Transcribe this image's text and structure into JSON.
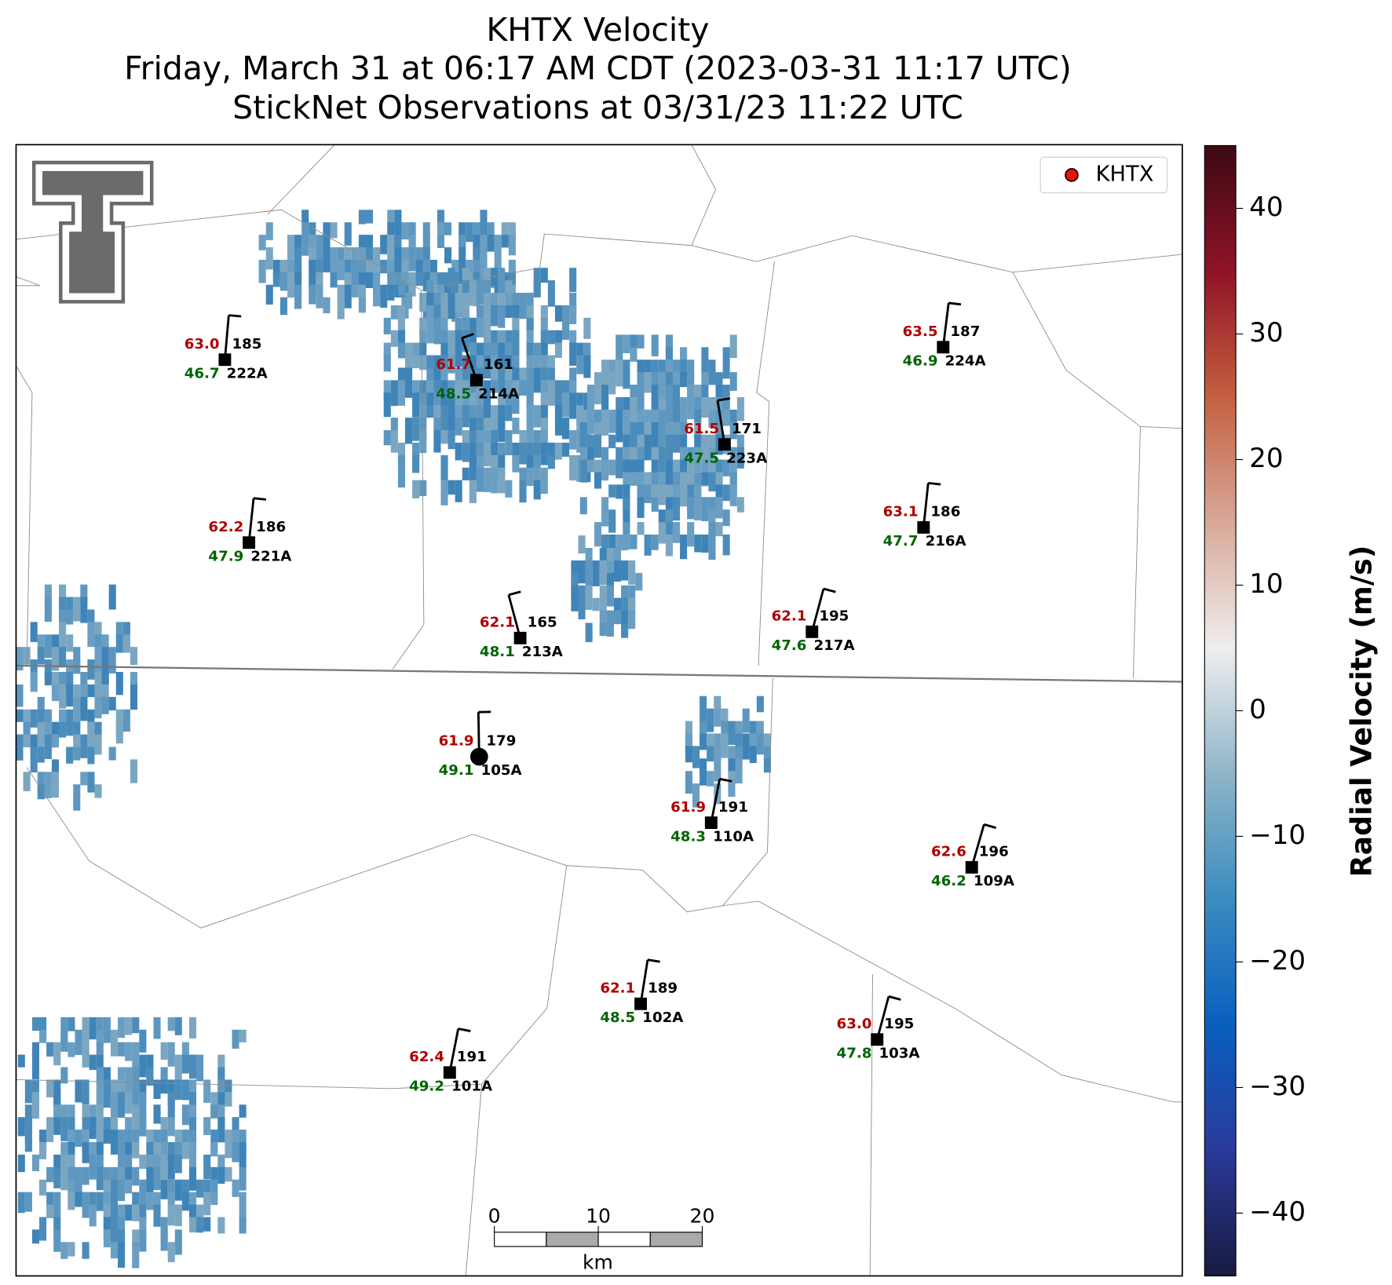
{
  "title": {
    "lines": [
      "KHTX Velocity",
      "Friday, March 31 at 06:17 AM CDT (2023-03-31 11:17 UTC)",
      "StickNet Observations at 03/31/23 11:22 UTC"
    ]
  },
  "legend": {
    "label": "KHTX",
    "color": "#e8120c"
  },
  "stations": [
    {
      "id": "222A",
      "temperature": "63.0",
      "dewpoint": "46.7",
      "wind_direction": 185
    },
    {
      "id": "214A",
      "temperature": "61.7",
      "dewpoint": "48.5",
      "wind_direction": 161
    },
    {
      "id": "224A",
      "temperature": "63.5",
      "dewpoint": "46.9",
      "wind_direction": 187
    },
    {
      "id": "223A",
      "temperature": "61.5",
      "dewpoint": "47.5",
      "wind_direction": 171
    },
    {
      "id": "221A",
      "temperature": "62.2",
      "dewpoint": "47.9",
      "wind_direction": 186
    },
    {
      "id": "216A",
      "temperature": "63.1",
      "dewpoint": "47.7",
      "wind_direction": 186
    },
    {
      "id": "213A",
      "temperature": "62.1",
      "dewpoint": "48.1",
      "wind_direction": 165
    },
    {
      "id": "217A",
      "temperature": "62.1",
      "dewpoint": "47.6",
      "wind_direction": 195
    },
    {
      "id": "105A",
      "temperature": "61.9",
      "dewpoint": "49.1",
      "wind_direction": 179
    },
    {
      "id": "110A",
      "temperature": "61.9",
      "dewpoint": "48.3",
      "wind_direction": 191
    },
    {
      "id": "109A",
      "temperature": "62.6",
      "dewpoint": "46.2",
      "wind_direction": 196
    },
    {
      "id": "102A",
      "temperature": "62.1",
      "dewpoint": "48.5",
      "wind_direction": 189
    },
    {
      "id": "103A",
      "temperature": "63.0",
      "dewpoint": "47.8",
      "wind_direction": 195
    },
    {
      "id": "101A",
      "temperature": "62.4",
      "dewpoint": "49.2",
      "wind_direction": 191
    }
  ],
  "colorbar": {
    "label": "Radial Velocity (m/s)",
    "lim": [
      -45,
      45
    ],
    "ticks": [
      40,
      30,
      20,
      10,
      0,
      {
        "value": -10,
        "label": "−10"
      },
      {
        "value": -20,
        "label": "−20"
      },
      {
        "value": -30,
        "label": "−30"
      },
      {
        "value": -40,
        "label": "−40"
      }
    ],
    "colors": [
      "#181a40",
      "#2a3a9a",
      "#0a5fbf",
      "#3a8cc0",
      "#8fb4c8",
      "#eeeeee",
      "#d8a898",
      "#c4603f",
      "#8f1226",
      "#3d0a14"
    ]
  },
  "scale_bar": {
    "ticks": [
      0,
      10,
      20
    ],
    "unit": "km"
  }
}
